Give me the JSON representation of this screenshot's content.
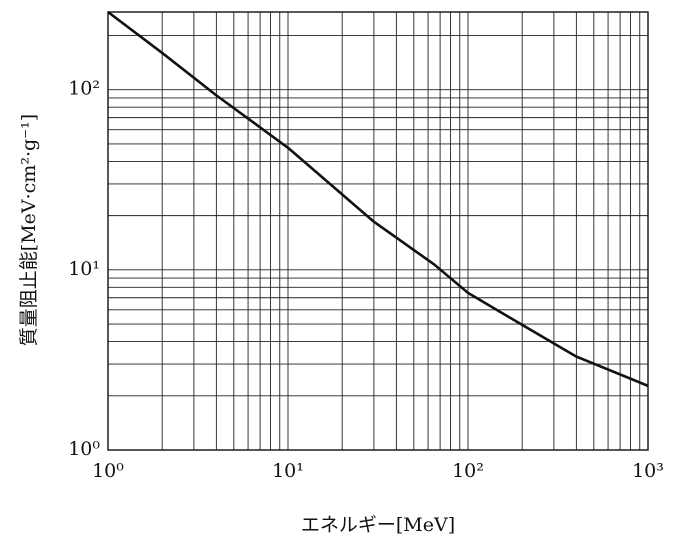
{
  "chart_data": {
    "type": "line",
    "x_label": "エネルギー[MeV]",
    "y_label": "質量阻止能[MeV·cm²·g⁻¹]",
    "x_scale": "log",
    "y_scale": "log",
    "x": [
      1,
      2,
      4,
      10,
      30,
      65,
      100,
      200,
      400,
      1000
    ],
    "series": [
      {
        "color": "#111111",
        "values": [
          270,
          160,
          93,
          47.6,
          18.5,
          10.7,
          7.45,
          4.95,
          3.3,
          2.27
        ]
      }
    ],
    "xlim": [
      1,
      1000
    ],
    "ylim": [
      1,
      270
    ],
    "xticks": [
      {
        "value": 1,
        "label": "10⁰"
      },
      {
        "value": 10,
        "label": "10¹"
      },
      {
        "value": 100,
        "label": "10²"
      },
      {
        "value": 1000,
        "label": "10³"
      }
    ],
    "yticks": [
      {
        "value": 1,
        "label": "10⁰"
      },
      {
        "value": 10,
        "label": "10¹"
      },
      {
        "value": 100,
        "label": "10²"
      }
    ],
    "grid": true,
    "minor_grid": true
  }
}
